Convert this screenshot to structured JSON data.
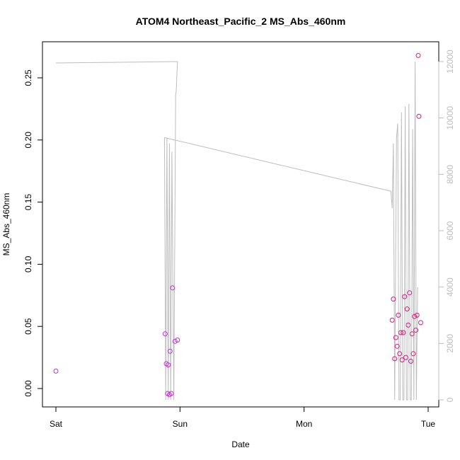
{
  "chart_data": {
    "type": "scatter",
    "title": "ATOM4 Northeast_Pacific_2 MS_Abs_460nm",
    "xlabel": "Date",
    "ylabel": "MS_Abs_460nm",
    "x_ticks": [
      "Sat",
      "Sun",
      "Mon",
      "Tue"
    ],
    "y_ticks": [
      "0.00",
      "0.05",
      "0.10",
      "0.15",
      "0.20",
      "0.25"
    ],
    "y2_ticks": [
      "0",
      "2000",
      "4000",
      "6000",
      "8000",
      "10000",
      "12000"
    ],
    "x_range_days": [
      0,
      3
    ],
    "ylim": [
      0,
      0.25
    ],
    "y2lim": [
      0,
      12000
    ],
    "grid": false,
    "colors": {
      "points": "#e0197d",
      "early_points": "#c42fd6",
      "line": "#bdbdbd"
    },
    "series": [
      {
        "type": "scatter",
        "points": [
          {
            "x": 0.0,
            "y": 0.014
          },
          {
            "x": 0.88,
            "y": 0.044
          },
          {
            "x": 0.89,
            "y": 0.02
          },
          {
            "x": 0.9,
            "y": -0.004
          },
          {
            "x": 0.905,
            "y": 0.019
          },
          {
            "x": 0.915,
            "y": -0.005
          },
          {
            "x": 0.92,
            "y": 0.03
          },
          {
            "x": 0.93,
            "y": -0.004
          },
          {
            "x": 0.94,
            "y": 0.081
          },
          {
            "x": 0.96,
            "y": 0.038
          },
          {
            "x": 0.98,
            "y": 0.039
          },
          {
            "x": 2.71,
            "y": 0.055
          },
          {
            "x": 2.72,
            "y": 0.072
          },
          {
            "x": 2.73,
            "y": 0.024
          },
          {
            "x": 2.74,
            "y": 0.041
          },
          {
            "x": 2.75,
            "y": 0.034
          },
          {
            "x": 2.76,
            "y": 0.059
          },
          {
            "x": 2.77,
            "y": 0.028
          },
          {
            "x": 2.78,
            "y": 0.045
          },
          {
            "x": 2.79,
            "y": 0.023
          },
          {
            "x": 2.8,
            "y": 0.045
          },
          {
            "x": 2.81,
            "y": 0.074
          },
          {
            "x": 2.82,
            "y": 0.025
          },
          {
            "x": 2.83,
            "y": 0.064
          },
          {
            "x": 2.84,
            "y": 0.051
          },
          {
            "x": 2.85,
            "y": 0.077
          },
          {
            "x": 2.86,
            "y": 0.022
          },
          {
            "x": 2.87,
            "y": 0.044
          },
          {
            "x": 2.88,
            "y": 0.028
          },
          {
            "x": 2.89,
            "y": 0.058
          },
          {
            "x": 2.9,
            "y": 0.047
          },
          {
            "x": 2.91,
            "y": 0.059
          },
          {
            "x": 2.92,
            "y": 0.268
          },
          {
            "x": 2.925,
            "y": 0.219
          },
          {
            "x": 2.94,
            "y": 0.053
          }
        ]
      },
      {
        "type": "line",
        "axis": "right",
        "points": [
          {
            "x": 0.0,
            "y": 11950
          },
          {
            "x": 0.98,
            "y": 12000
          },
          {
            "x": 0.97,
            "y": 11000
          },
          {
            "x": 0.965,
            "y": 10800
          },
          {
            "x": 0.95,
            "y": 0
          },
          {
            "x": 0.935,
            "y": 8800
          },
          {
            "x": 0.925,
            "y": 0
          },
          {
            "x": 0.915,
            "y": 9100
          },
          {
            "x": 0.905,
            "y": 0
          },
          {
            "x": 0.895,
            "y": 9300
          },
          {
            "x": 0.885,
            "y": 0
          },
          {
            "x": 0.875,
            "y": 9300
          },
          {
            "x": 0.88,
            "y": 9300
          },
          {
            "x": 2.7,
            "y": 7400
          },
          {
            "x": 2.71,
            "y": 6800
          },
          {
            "x": 2.72,
            "y": 9100
          },
          {
            "x": 2.73,
            "y": 0
          },
          {
            "x": 2.745,
            "y": 9300
          },
          {
            "x": 2.755,
            "y": 9800
          },
          {
            "x": 2.765,
            "y": 0
          },
          {
            "x": 2.775,
            "y": 0
          },
          {
            "x": 2.785,
            "y": 10200
          },
          {
            "x": 2.795,
            "y": 0
          },
          {
            "x": 2.805,
            "y": 0
          },
          {
            "x": 2.815,
            "y": 10400
          },
          {
            "x": 2.825,
            "y": 0
          },
          {
            "x": 2.835,
            "y": 0
          },
          {
            "x": 2.845,
            "y": 10500
          },
          {
            "x": 2.855,
            "y": 0
          },
          {
            "x": 2.865,
            "y": 0
          },
          {
            "x": 2.875,
            "y": 9600
          },
          {
            "x": 2.885,
            "y": 0
          },
          {
            "x": 2.895,
            "y": 12000
          },
          {
            "x": 2.905,
            "y": 0
          },
          {
            "x": 2.915,
            "y": 4000
          }
        ]
      }
    ]
  }
}
